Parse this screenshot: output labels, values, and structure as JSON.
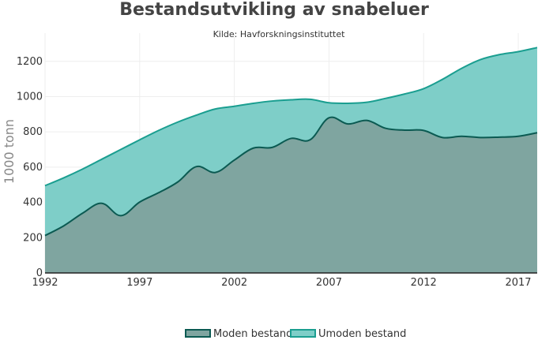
{
  "chart_data": {
    "type": "area",
    "title": "Bestandsutvikling av snabeluer",
    "subtitle": "Kilde: Havforskningsinstituttet",
    "xlabel": "",
    "ylabel": "1000 tonn",
    "xlim": [
      1992,
      2018
    ],
    "ylim": [
      0,
      1360
    ],
    "x_ticks": [
      1992,
      1997,
      2002,
      2007,
      2012,
      2017
    ],
    "y_ticks": [
      0,
      200,
      400,
      600,
      800,
      1000,
      1200
    ],
    "grid": true,
    "legend_position": "bottom-center",
    "x": [
      1992,
      1993,
      1994,
      1995,
      1996,
      1997,
      1998,
      1999,
      2000,
      2001,
      2002,
      2003,
      2004,
      2005,
      2006,
      2007,
      2008,
      2009,
      2010,
      2011,
      2012,
      2013,
      2014,
      2015,
      2016,
      2017,
      2018
    ],
    "series": [
      {
        "name": "Moden bestand",
        "color": "#0b5a52",
        "fill": "#7fa5a0",
        "values": [
          212,
          268,
          340,
          395,
          325,
          402,
          455,
          515,
          603,
          570,
          640,
          708,
          712,
          763,
          755,
          880,
          845,
          865,
          820,
          810,
          808,
          768,
          775,
          768,
          770,
          775,
          795
        ]
      },
      {
        "name": "Umoden bestand",
        "color": "#1a9e90",
        "fill": "#7ecec8",
        "values": [
          495,
          540,
          590,
          645,
          700,
          755,
          808,
          855,
          895,
          930,
          945,
          962,
          975,
          982,
          985,
          965,
          962,
          968,
          990,
          1015,
          1045,
          1098,
          1160,
          1210,
          1238,
          1255,
          1278
        ]
      }
    ]
  }
}
